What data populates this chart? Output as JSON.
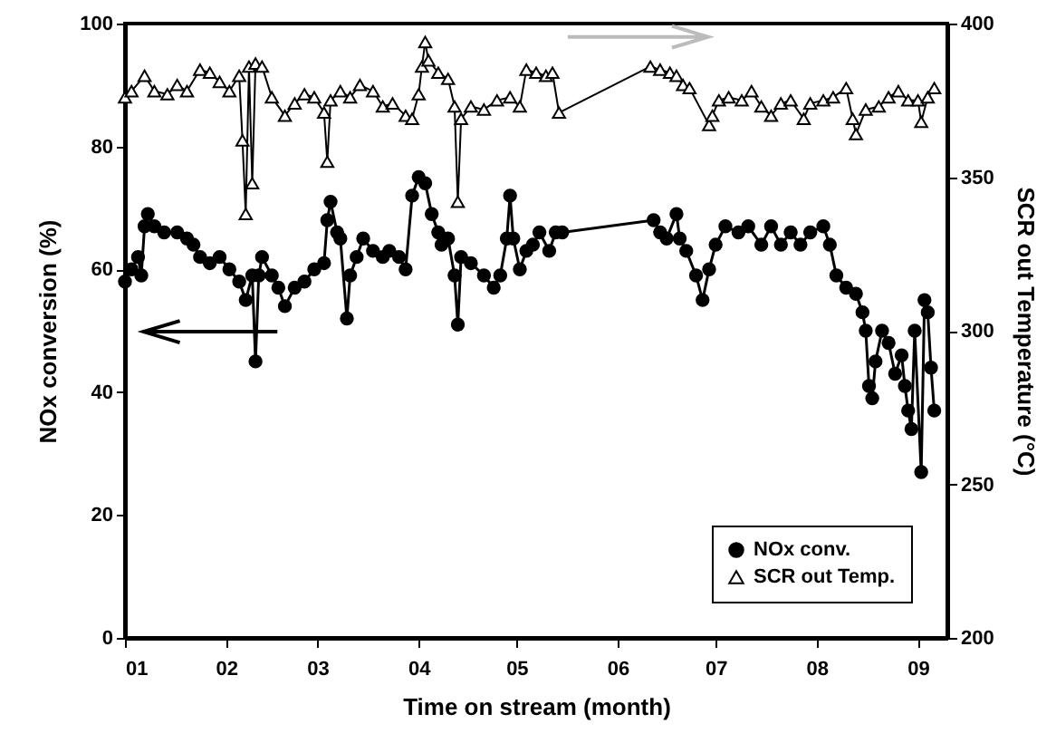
{
  "chart_data": {
    "type": "line",
    "xlabel": "Time on stream (month)",
    "ylabel": "NOx conversion (%)",
    "y2label": "SCR out Temperature (°C)",
    "xlim": [
      "--01-01",
      "--09-10"
    ],
    "xticks": [
      {
        "value": "--01-01",
        "label": "01"
      },
      {
        "value": "--02-01",
        "label": "02"
      },
      {
        "value": "--03-01",
        "label": "03"
      },
      {
        "value": "--04-01",
        "label": "04"
      },
      {
        "value": "--05-01",
        "label": "05"
      },
      {
        "value": "--06-01",
        "label": "06"
      },
      {
        "value": "--07-01",
        "label": "07"
      },
      {
        "value": "--08-01",
        "label": "08"
      },
      {
        "value": "--09-01",
        "label": "09"
      }
    ],
    "ylim": [
      0,
      100
    ],
    "yticks": [
      0,
      20,
      40,
      60,
      80,
      100
    ],
    "y2lim": [
      200,
      400
    ],
    "y2ticks": [
      200,
      250,
      300,
      350,
      400
    ],
    "grid": false,
    "legend": "bottom right",
    "series": [
      {
        "name": "NOx conv.",
        "color": "#000000",
        "marker": "circle",
        "x": [
          "--01-01",
          "--01-03",
          "--01-05",
          "--01-06",
          "--01-07",
          "--01-08",
          "--01-10",
          "--01-13",
          "--01-17",
          "--01-20",
          "--01-22",
          "--01-24",
          "--01-27",
          "--01-30",
          "--02-02",
          "--02-05",
          "--02-07",
          "--02-09",
          "--02-10",
          "--02-11",
          "--02-12",
          "--02-15",
          "--02-17",
          "--02-19",
          "--02-22",
          "--02-25",
          "--02-28",
          "--03-03",
          "--03-04",
          "--03-05",
          "--03-07",
          "--03-08",
          "--03-10",
          "--03-11",
          "--03-13",
          "--03-15",
          "--03-18",
          "--03-21",
          "--03-23",
          "--03-26",
          "--03-28",
          "--03-30",
          "--04-01",
          "--04-03",
          "--04-05",
          "--04-07",
          "--04-08",
          "--04-10",
          "--04-12",
          "--04-13",
          "--04-14",
          "--04-17",
          "--04-21",
          "--04-24",
          "--04-26",
          "--04-28",
          "--04-29",
          "--04-30",
          "--05-02",
          "--05-04",
          "--05-06",
          "--05-08",
          "--05-11",
          "--05-13",
          "--05-15",
          "--06-12",
          "--06-14",
          "--06-16",
          "--06-19",
          "--06-20",
          "--06-22",
          "--06-25",
          "--06-27",
          "--06-29",
          "--07-01",
          "--07-04",
          "--07-08",
          "--07-11",
          "--07-15",
          "--07-18",
          "--07-21",
          "--07-24",
          "--07-27",
          "--07-30",
          "--08-03",
          "--08-05",
          "--08-07",
          "--08-10",
          "--08-13",
          "--08-15",
          "--08-16",
          "--08-17",
          "--08-18",
          "--08-19",
          "--08-21",
          "--08-23",
          "--08-25",
          "--08-27",
          "--08-28",
          "--08-29",
          "--08-30",
          "--08-31",
          "--09-02",
          "--09-03",
          "--09-04",
          "--09-05",
          "--09-06"
        ],
        "values": [
          58,
          60,
          62,
          59,
          67,
          69,
          67,
          66,
          66,
          65,
          64,
          62,
          61,
          62,
          60,
          58,
          55,
          59,
          45,
          59,
          62,
          59,
          57,
          54,
          57,
          58,
          60,
          61,
          68,
          71,
          66,
          65,
          52,
          59,
          62,
          65,
          63,
          62,
          63,
          62,
          60,
          72,
          75,
          74,
          69,
          66,
          64,
          65,
          59,
          51,
          62,
          61,
          59,
          57,
          59,
          65,
          72,
          65,
          60,
          63,
          64,
          66,
          63,
          66,
          66,
          68,
          66,
          65,
          69,
          65,
          63,
          59,
          55,
          60,
          64,
          67,
          66,
          67,
          64,
          67,
          64,
          66,
          64,
          66,
          67,
          64,
          59,
          57,
          56,
          53,
          50,
          41,
          39,
          45,
          50,
          48,
          43,
          46,
          41,
          37,
          34,
          50,
          27,
          55,
          53,
          44,
          37
        ]
      },
      {
        "name": "SCR out Temp.",
        "color": "#000000",
        "marker": "triangle",
        "axis": "y2",
        "x": [
          "--01-01",
          "--01-03",
          "--01-07",
          "--01-10",
          "--01-14",
          "--01-17",
          "--01-20",
          "--01-24",
          "--01-27",
          "--01-30",
          "--02-02",
          "--02-05",
          "--02-06",
          "--02-07",
          "--02-08",
          "--02-09",
          "--02-10",
          "--02-12",
          "--02-15",
          "--02-19",
          "--02-22",
          "--02-25",
          "--02-28",
          "--03-03",
          "--03-04",
          "--03-05",
          "--03-08",
          "--03-11",
          "--03-14",
          "--03-18",
          "--03-21",
          "--03-24",
          "--03-28",
          "--03-30",
          "--04-01",
          "--04-02",
          "--04-03",
          "--04-04",
          "--04-07",
          "--04-10",
          "--04-12",
          "--04-13",
          "--04-14",
          "--04-17",
          "--04-21",
          "--04-25",
          "--04-29",
          "--05-02",
          "--05-04",
          "--05-07",
          "--05-10",
          "--05-12",
          "--05-14",
          "--06-11",
          "--06-14",
          "--06-17",
          "--06-19",
          "--06-21",
          "--06-23",
          "--06-29",
          "--06-30",
          "--07-02",
          "--07-05",
          "--07-09",
          "--07-12",
          "--07-15",
          "--07-18",
          "--07-21",
          "--07-24",
          "--07-28",
          "--07-30",
          "--08-03",
          "--08-06",
          "--08-10",
          "--08-12",
          "--08-13",
          "--08-16",
          "--08-20",
          "--08-23",
          "--08-26",
          "--08-29",
          "--09-01",
          "--09-02",
          "--09-04",
          "--09-06"
        ],
        "values": [
          376,
          378,
          383,
          378,
          377,
          380,
          378,
          385,
          384,
          381,
          378,
          383,
          362,
          338,
          386,
          348,
          387,
          386,
          376,
          370,
          374,
          377,
          376,
          371,
          355,
          375,
          378,
          376,
          380,
          378,
          373,
          374,
          370,
          369,
          377,
          386,
          394,
          388,
          384,
          382,
          373,
          342,
          369,
          373,
          372,
          375,
          376,
          373,
          385,
          384,
          383,
          384,
          371,
          386,
          385,
          384,
          383,
          380,
          379,
          367,
          370,
          375,
          376,
          375,
          378,
          373,
          370,
          374,
          375,
          369,
          374,
          375,
          376,
          379,
          369,
          364,
          372,
          373,
          376,
          378,
          375,
          375,
          368,
          376,
          379
        ]
      }
    ]
  }
}
